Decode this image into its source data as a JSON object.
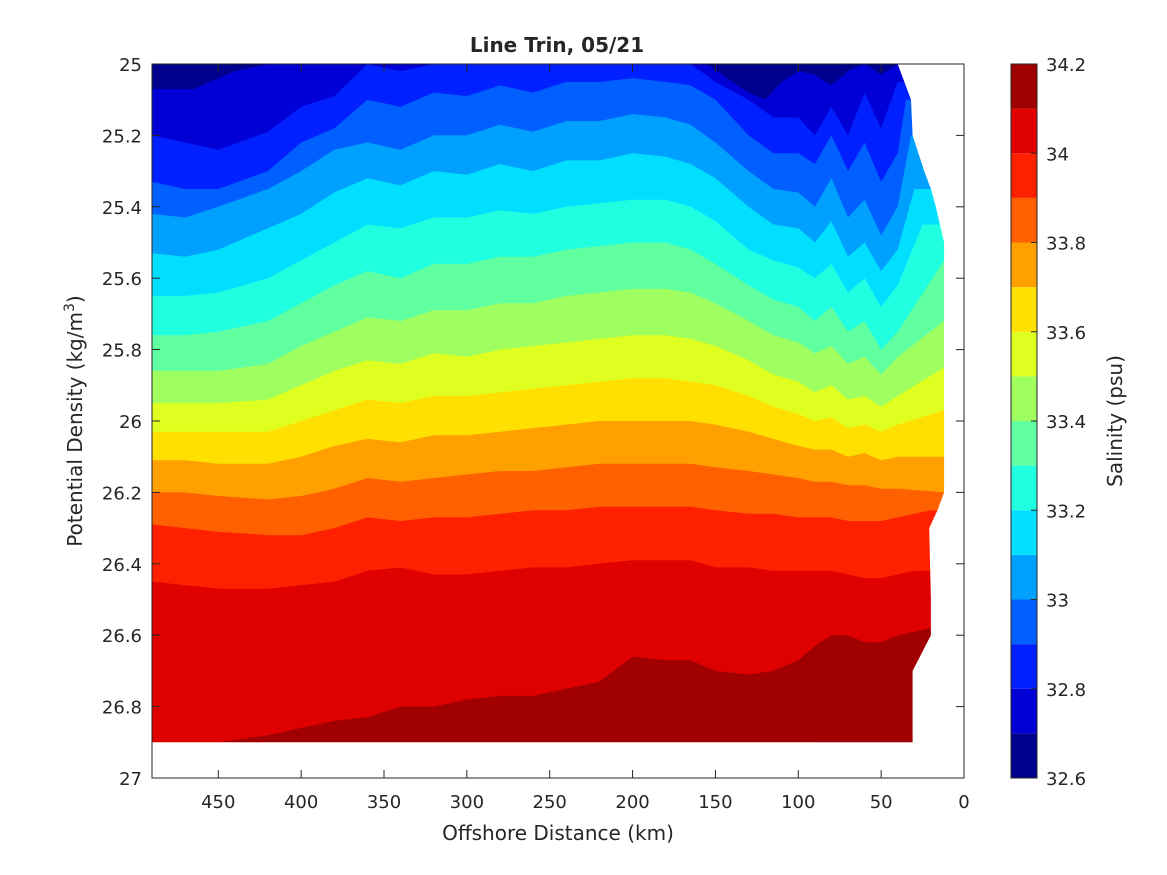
{
  "chart_data": {
    "type": "contourf",
    "title": "Line Trin, 05/21",
    "xlabel": "Offshore Distance (km)",
    "ylabel": "Potential Density (kg/m",
    "ylabel_superscript": "3",
    "ylabel_suffix": ")",
    "xlim": [
      490,
      0
    ],
    "ylim": [
      27,
      25
    ],
    "y_reversed": true,
    "x_reversed": true,
    "xticks": [
      450,
      400,
      350,
      300,
      250,
      200,
      150,
      100,
      50,
      0
    ],
    "xtick_labels": [
      "450",
      "400",
      "350",
      "300",
      "250",
      "200",
      "150",
      "100",
      "50",
      "0"
    ],
    "yticks": [
      25,
      25.2,
      25.4,
      25.6,
      25.8,
      26,
      26.2,
      26.4,
      26.6,
      26.8,
      27
    ],
    "ytick_labels": [
      "25",
      "25.2",
      "25.4",
      "25.6",
      "25.8",
      "26",
      "26.2",
      "26.4",
      "26.6",
      "26.8",
      "27"
    ],
    "data_extent": {
      "y_max": 26.9
    },
    "colorbar": {
      "label": "Salinity (psu)",
      "min": 32.6,
      "max": 34.2,
      "ticks": [
        34.2,
        34,
        33.8,
        33.6,
        33.4,
        33.2,
        33,
        32.8,
        32.6
      ],
      "tick_labels": [
        "34.2",
        "34",
        "33.8",
        "33.6",
        "33.4",
        "33.2",
        "33",
        "32.8",
        "32.6"
      ],
      "levels": [
        32.6,
        32.7,
        32.8,
        32.9,
        33.0,
        33.1,
        33.2,
        33.3,
        33.4,
        33.5,
        33.6,
        33.7,
        33.8,
        33.9,
        34.0,
        34.1,
        34.2
      ],
      "colors": [
        "#00008f",
        "#0000d6",
        "#0020ff",
        "#0060ff",
        "#00a0ff",
        "#00dfff",
        "#20ffdf",
        "#60ffa0",
        "#a0ff60",
        "#dfff20",
        "#ffe000",
        "#ffa000",
        "#ff6000",
        "#ff2000",
        "#df0000",
        "#a00000"
      ]
    },
    "shelf_edge": {
      "x": [
        40,
        32,
        31,
        24,
        20,
        17,
        12,
        12,
        12,
        12,
        16,
        21,
        20,
        20,
        31,
        31
      ],
      "density": [
        25.0,
        25.1,
        25.2,
        25.3,
        25.35,
        25.4,
        25.5,
        25.6,
        25.8,
        26.2,
        26.25,
        26.3,
        26.5,
        26.6,
        26.7,
        26.9
      ]
    },
    "isohalines": [
      {
        "value": 32.7,
        "x": [
          490,
          465,
          440,
          420,
          400,
          380,
          370,
          320,
          280,
          250,
          220,
          200,
          170,
          155,
          140,
          130,
          120,
          110,
          100,
          90,
          80,
          70,
          60,
          50,
          40
        ],
        "density": [
          25.07,
          25.07,
          25.02,
          25.0,
          25.0,
          25.0,
          25.0,
          25.0,
          25.0,
          25.0,
          25.0,
          25.0,
          25.0,
          25.0,
          25.05,
          25.08,
          25.1,
          25.05,
          25.02,
          25.03,
          25.06,
          25.02,
          25.0,
          25.03,
          25.0
        ]
      },
      {
        "value": 32.8,
        "x": [
          490,
          470,
          450,
          420,
          400,
          380,
          360,
          340,
          320,
          300,
          280,
          260,
          240,
          220,
          200,
          180,
          165,
          150,
          130,
          115,
          100,
          90,
          80,
          70,
          60,
          50,
          40
        ],
        "density": [
          25.2,
          25.22,
          25.24,
          25.19,
          25.12,
          25.09,
          25.0,
          25.02,
          25.0,
          25.0,
          25.0,
          25.0,
          25.0,
          25.0,
          25.0,
          25.0,
          25.0,
          25.05,
          25.1,
          25.15,
          25.15,
          25.2,
          25.12,
          25.2,
          25.08,
          25.18,
          25.05
        ]
      },
      {
        "value": 32.9,
        "x": [
          490,
          470,
          450,
          420,
          400,
          380,
          360,
          340,
          320,
          300,
          280,
          260,
          240,
          220,
          200,
          180,
          165,
          150,
          130,
          115,
          100,
          90,
          80,
          70,
          60,
          50,
          40,
          35
        ],
        "density": [
          25.33,
          25.35,
          25.35,
          25.3,
          25.22,
          25.18,
          25.1,
          25.12,
          25.08,
          25.09,
          25.06,
          25.08,
          25.05,
          25.05,
          25.04,
          25.05,
          25.06,
          25.1,
          25.2,
          25.25,
          25.25,
          25.28,
          25.2,
          25.3,
          25.22,
          25.33,
          25.25,
          25.1
        ]
      },
      {
        "value": 33.0,
        "x": [
          490,
          470,
          450,
          420,
          400,
          380,
          360,
          340,
          320,
          300,
          280,
          260,
          240,
          220,
          200,
          180,
          165,
          150,
          130,
          115,
          100,
          90,
          80,
          70,
          60,
          50,
          40,
          32
        ],
        "density": [
          25.42,
          25.43,
          25.4,
          25.35,
          25.3,
          25.24,
          25.22,
          25.24,
          25.2,
          25.2,
          25.17,
          25.19,
          25.16,
          25.16,
          25.14,
          25.15,
          25.17,
          25.22,
          25.3,
          25.35,
          25.36,
          25.4,
          25.32,
          25.43,
          25.38,
          25.48,
          25.4,
          25.2
        ]
      },
      {
        "value": 33.1,
        "x": [
          490,
          470,
          450,
          420,
          400,
          380,
          360,
          340,
          320,
          300,
          280,
          260,
          240,
          220,
          200,
          180,
          165,
          150,
          130,
          115,
          100,
          90,
          80,
          70,
          60,
          50,
          40,
          30
        ],
        "density": [
          25.53,
          25.54,
          25.52,
          25.46,
          25.42,
          25.36,
          25.32,
          25.34,
          25.3,
          25.31,
          25.28,
          25.3,
          25.27,
          25.27,
          25.25,
          25.26,
          25.28,
          25.32,
          25.4,
          25.45,
          25.46,
          25.5,
          25.44,
          25.54,
          25.5,
          25.58,
          25.52,
          25.35
        ]
      },
      {
        "value": 33.2,
        "x": [
          490,
          470,
          450,
          420,
          400,
          380,
          360,
          340,
          320,
          300,
          280,
          260,
          240,
          220,
          200,
          180,
          165,
          150,
          130,
          115,
          100,
          90,
          80,
          70,
          60,
          50,
          40,
          25
        ],
        "density": [
          25.65,
          25.65,
          25.64,
          25.6,
          25.55,
          25.5,
          25.45,
          25.46,
          25.43,
          25.43,
          25.41,
          25.42,
          25.4,
          25.39,
          25.38,
          25.38,
          25.4,
          25.44,
          25.52,
          25.55,
          25.57,
          25.6,
          25.56,
          25.64,
          25.6,
          25.68,
          25.62,
          25.45
        ]
      },
      {
        "value": 33.3,
        "x": [
          490,
          470,
          450,
          420,
          400,
          380,
          360,
          340,
          320,
          300,
          280,
          260,
          240,
          220,
          200,
          180,
          165,
          150,
          130,
          115,
          100,
          90,
          80,
          70,
          60,
          50,
          40,
          12
        ],
        "density": [
          25.76,
          25.76,
          25.75,
          25.72,
          25.67,
          25.62,
          25.58,
          25.6,
          25.56,
          25.56,
          25.54,
          25.54,
          25.52,
          25.51,
          25.5,
          25.5,
          25.52,
          25.56,
          25.62,
          25.66,
          25.68,
          25.72,
          25.68,
          25.75,
          25.72,
          25.8,
          25.75,
          25.55
        ]
      },
      {
        "value": 33.4,
        "x": [
          490,
          470,
          450,
          420,
          400,
          380,
          360,
          340,
          320,
          300,
          280,
          260,
          240,
          220,
          200,
          180,
          165,
          150,
          130,
          115,
          100,
          90,
          80,
          70,
          60,
          50,
          40,
          12
        ],
        "density": [
          25.86,
          25.86,
          25.86,
          25.84,
          25.79,
          25.75,
          25.71,
          25.72,
          25.69,
          25.69,
          25.67,
          25.67,
          25.65,
          25.64,
          25.63,
          25.63,
          25.64,
          25.67,
          25.72,
          25.76,
          25.78,
          25.81,
          25.79,
          25.84,
          25.82,
          25.87,
          25.82,
          25.72
        ]
      },
      {
        "value": 33.5,
        "x": [
          490,
          470,
          450,
          420,
          400,
          380,
          360,
          340,
          320,
          300,
          280,
          260,
          240,
          220,
          200,
          180,
          165,
          150,
          130,
          115,
          100,
          90,
          80,
          70,
          60,
          50,
          40,
          12
        ],
        "density": [
          25.95,
          25.95,
          25.95,
          25.94,
          25.9,
          25.86,
          25.83,
          25.84,
          25.81,
          25.82,
          25.8,
          25.79,
          25.78,
          25.77,
          25.76,
          25.76,
          25.77,
          25.79,
          25.83,
          25.87,
          25.89,
          25.92,
          25.9,
          25.94,
          25.93,
          25.96,
          25.93,
          25.85
        ]
      },
      {
        "value": 33.6,
        "x": [
          490,
          470,
          450,
          420,
          400,
          380,
          360,
          340,
          320,
          300,
          280,
          260,
          240,
          220,
          200,
          180,
          165,
          150,
          130,
          115,
          100,
          90,
          80,
          70,
          60,
          50,
          40,
          12
        ],
        "density": [
          26.03,
          26.03,
          26.03,
          26.03,
          26.0,
          25.97,
          25.94,
          25.95,
          25.93,
          25.93,
          25.92,
          25.91,
          25.9,
          25.89,
          25.88,
          25.88,
          25.89,
          25.9,
          25.93,
          25.96,
          25.98,
          26.0,
          25.99,
          26.02,
          26.01,
          26.03,
          26.01,
          25.97
        ]
      },
      {
        "value": 33.7,
        "x": [
          490,
          470,
          450,
          420,
          400,
          380,
          360,
          340,
          320,
          300,
          280,
          260,
          240,
          220,
          200,
          180,
          165,
          150,
          130,
          115,
          100,
          90,
          80,
          70,
          60,
          50,
          40,
          12
        ],
        "density": [
          26.11,
          26.11,
          26.12,
          26.12,
          26.1,
          26.07,
          26.05,
          26.06,
          26.04,
          26.04,
          26.03,
          26.02,
          26.01,
          26.0,
          26.0,
          26.0,
          26.0,
          26.01,
          26.03,
          26.05,
          26.07,
          26.08,
          26.08,
          26.1,
          26.09,
          26.11,
          26.1,
          26.1
        ]
      },
      {
        "value": 33.8,
        "x": [
          490,
          470,
          450,
          420,
          400,
          380,
          360,
          340,
          320,
          300,
          280,
          260,
          240,
          220,
          200,
          180,
          165,
          150,
          130,
          115,
          100,
          90,
          80,
          70,
          60,
          50,
          40,
          12
        ],
        "density": [
          26.2,
          26.2,
          26.21,
          26.22,
          26.21,
          26.19,
          26.16,
          26.17,
          26.16,
          26.15,
          26.14,
          26.14,
          26.13,
          26.12,
          26.12,
          26.12,
          26.12,
          26.13,
          26.14,
          26.15,
          26.16,
          26.17,
          26.17,
          26.18,
          26.18,
          26.19,
          26.19,
          26.2
        ]
      },
      {
        "value": 33.9,
        "x": [
          490,
          470,
          450,
          420,
          400,
          380,
          360,
          340,
          320,
          300,
          280,
          260,
          240,
          220,
          200,
          180,
          165,
          150,
          130,
          115,
          100,
          90,
          80,
          70,
          60,
          50,
          40,
          20
        ],
        "density": [
          26.29,
          26.3,
          26.31,
          26.32,
          26.32,
          26.3,
          26.27,
          26.28,
          26.27,
          26.27,
          26.26,
          26.25,
          26.25,
          26.24,
          26.24,
          26.24,
          26.24,
          26.25,
          26.26,
          26.26,
          26.27,
          26.27,
          26.27,
          26.28,
          26.28,
          26.28,
          26.27,
          26.25
        ]
      },
      {
        "value": 34.0,
        "x": [
          490,
          470,
          450,
          420,
          400,
          380,
          360,
          340,
          320,
          300,
          280,
          260,
          240,
          220,
          200,
          180,
          165,
          150,
          130,
          115,
          100,
          90,
          80,
          70,
          60,
          50,
          40,
          30,
          20
        ],
        "density": [
          26.45,
          26.46,
          26.47,
          26.47,
          26.46,
          26.45,
          26.42,
          26.41,
          26.43,
          26.43,
          26.42,
          26.41,
          26.41,
          26.4,
          26.39,
          26.39,
          26.39,
          26.41,
          26.41,
          26.42,
          26.42,
          26.42,
          26.42,
          26.43,
          26.44,
          26.44,
          26.43,
          26.42,
          26.42
        ]
      },
      {
        "value": 34.1,
        "x": [
          490,
          470,
          450,
          420,
          400,
          380,
          360,
          340,
          320,
          300,
          280,
          260,
          240,
          220,
          200,
          180,
          165,
          150,
          130,
          115,
          100,
          90,
          80,
          70,
          60,
          50,
          40,
          30,
          20
        ],
        "density": [
          26.9,
          26.9,
          26.9,
          26.88,
          26.86,
          26.84,
          26.83,
          26.8,
          26.8,
          26.78,
          26.77,
          26.77,
          26.75,
          26.73,
          26.66,
          26.67,
          26.67,
          26.7,
          26.71,
          26.7,
          26.67,
          26.63,
          26.6,
          26.6,
          26.62,
          26.62,
          26.6,
          26.59,
          26.58
        ]
      },
      {
        "value": 34.2,
        "x": [
          90,
          70,
          50,
          40,
          31
        ],
        "density": [
          26.9,
          26.88,
          26.85,
          26.84,
          26.83
        ]
      }
    ]
  }
}
